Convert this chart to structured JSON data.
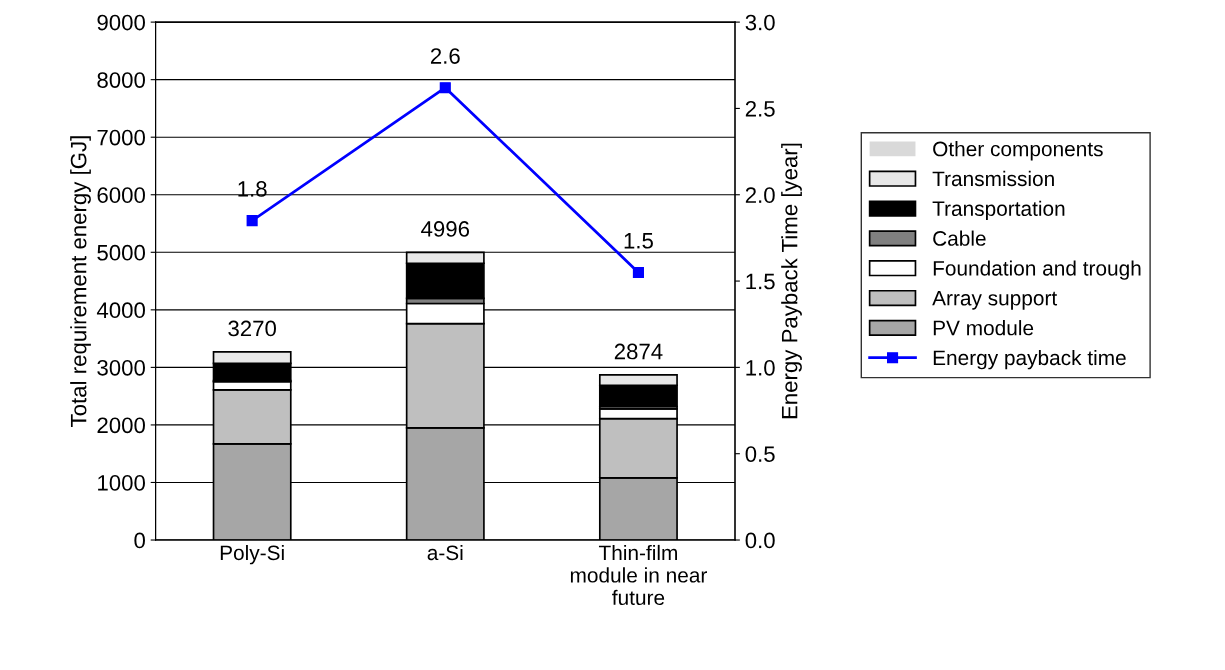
{
  "chart_data": {
    "type": "bar",
    "stacked": true,
    "ylabel": "Total requirement energy [GJ]",
    "y2label": "Energy Payback Time [year]",
    "categories": [
      "Poly-Si",
      "a-Si",
      "Thin-film\nmodule in near\nfuture"
    ],
    "ylim": [
      0,
      9000
    ],
    "yticks": [
      0,
      1000,
      2000,
      3000,
      4000,
      5000,
      6000,
      7000,
      8000,
      9000
    ],
    "y2lim": [
      0,
      3
    ],
    "y2ticks": [
      {
        "value": 0,
        "label": "0.0"
      },
      {
        "value": 0.5,
        "label": "0.5"
      },
      {
        "value": 1,
        "label": "1.0"
      },
      {
        "value": 1.5,
        "label": "1.5"
      },
      {
        "value": 2,
        "label": "2.0"
      },
      {
        "value": 2.5,
        "label": "2.5"
      },
      {
        "value": 3,
        "label": "3.0"
      }
    ],
    "grid": "y",
    "legend": "right",
    "totals": [
      "3270",
      "4996",
      "2874"
    ],
    "series": [
      {
        "name": "PV module",
        "color": "#a6a6a6",
        "values": [
          1670,
          1950,
          1080
        ]
      },
      {
        "name": "Array support",
        "color": "#bfbfbf",
        "values": [
          940,
          1810,
          1030
        ]
      },
      {
        "name": "Foundation and trough",
        "color": "#ffffff",
        "values": [
          140,
          350,
          170
        ]
      },
      {
        "name": "Cable",
        "color": "#808080",
        "values": [
          20,
          90,
          40
        ]
      },
      {
        "name": "Transportation",
        "color": "#000000",
        "values": [
          300,
          610,
          370
        ]
      },
      {
        "name": "Transmission",
        "color": "#e8e8e8",
        "values": [
          200,
          190,
          180
        ]
      },
      {
        "name": "Other components",
        "color": "#d9d9d9",
        "values": [
          0,
          0,
          0
        ]
      },
      {
        "name": "Energy payback time",
        "type": "line",
        "axis": "y2",
        "color": "#0000ff",
        "marker": "square",
        "values": [
          1.85,
          2.62,
          1.55
        ],
        "value_labels": [
          "1.8",
          "2.6",
          "1.5"
        ]
      }
    ]
  }
}
